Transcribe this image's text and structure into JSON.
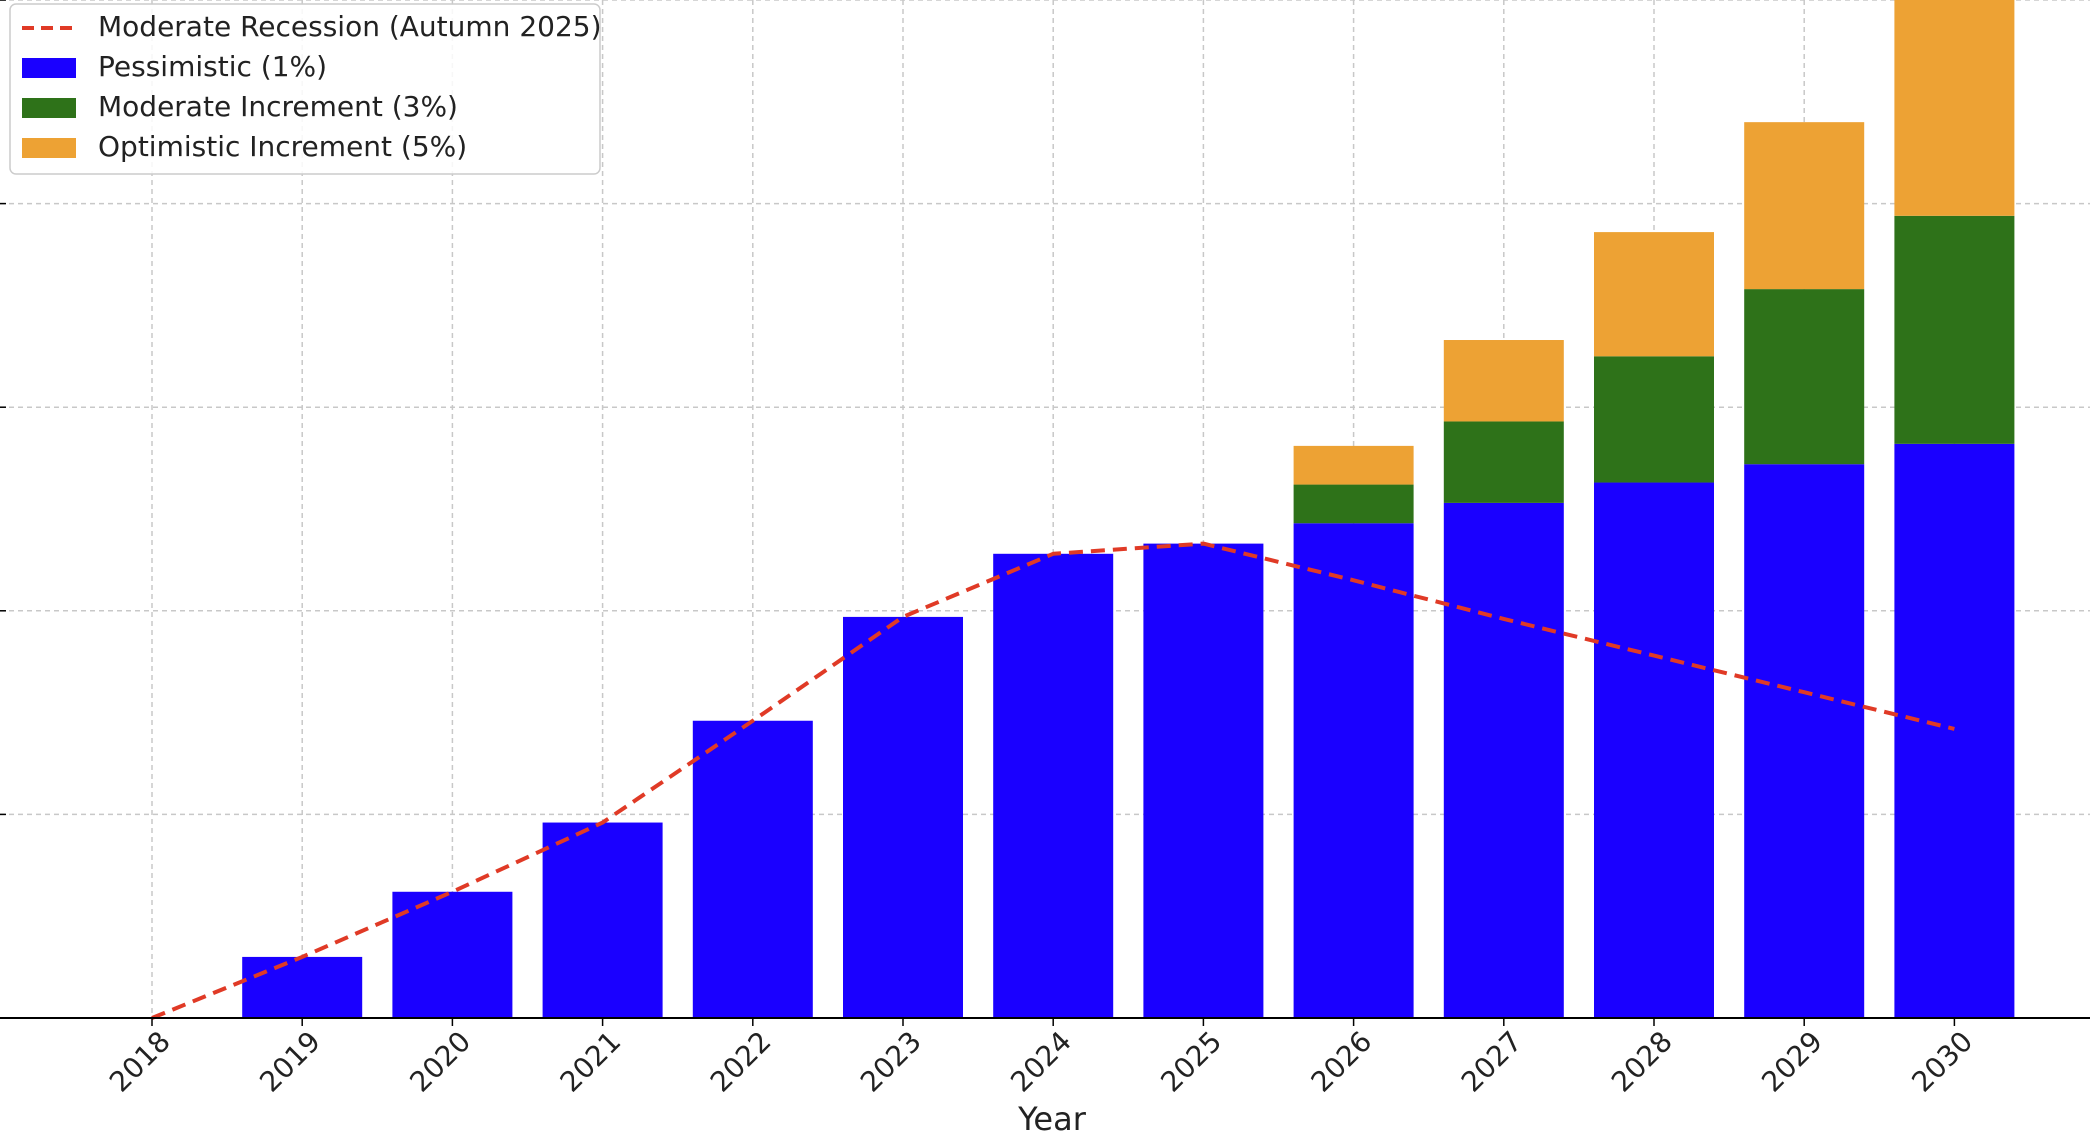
{
  "chart_data": {
    "type": "bar",
    "stacked": true,
    "xlabel": "Year",
    "ylabel": "",
    "ylim": [
      0,
      5.0
    ],
    "grid": true,
    "legend_position": "top-left",
    "categories": [
      "2018",
      "2019",
      "2020",
      "2021",
      "2022",
      "2023",
      "2024",
      "2025",
      "2026",
      "2027",
      "2028",
      "2029",
      "2030"
    ],
    "bar_series": [
      {
        "name": "Pessimistic (1%)",
        "color": "#1a00ff",
        "values": [
          0,
          0.3,
          0.62,
          0.96,
          1.46,
          1.97,
          2.28,
          2.33,
          2.43,
          2.53,
          2.63,
          2.72,
          2.82
        ]
      },
      {
        "name": "Moderate Increment (3%)",
        "color": "#2e7219",
        "values": [
          0,
          0,
          0,
          0,
          0,
          0,
          0,
          0,
          0.19,
          0.4,
          0.62,
          0.86,
          1.12
        ]
      },
      {
        "name": "Optimistic Increment (5%)",
        "color": "#eda234",
        "values": [
          0,
          0,
          0,
          0,
          0,
          0,
          0,
          0,
          0.19,
          0.4,
          0.61,
          0.82,
          1.06
        ]
      }
    ],
    "line_series": [
      {
        "name": "Moderate Recession (Autumn 2025)",
        "color": "#e03a26",
        "style": "dashed",
        "values": [
          0,
          0.3,
          0.62,
          0.96,
          1.46,
          1.97,
          2.28,
          2.33,
          2.15,
          1.96,
          1.78,
          1.6,
          1.42
        ]
      }
    ],
    "legend": [
      {
        "label": "Moderate Recession (Autumn 2025)",
        "kind": "line",
        "color": "#e03a26"
      },
      {
        "label": "Pessimistic (1%)",
        "kind": "patch",
        "color": "#1a00ff"
      },
      {
        "label": "Moderate Increment (3%)",
        "kind": "patch",
        "color": "#2e7219"
      },
      {
        "label": "Optimistic Increment (5%)",
        "kind": "patch",
        "color": "#eda234"
      }
    ]
  }
}
